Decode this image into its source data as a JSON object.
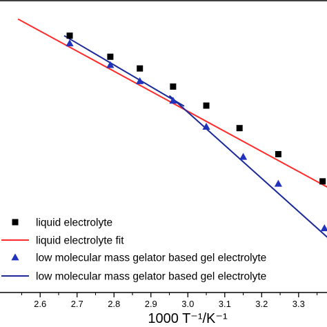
{
  "chart_data": {
    "type": "scatter",
    "title": "",
    "xlabel": "1000 T⁻¹/K⁻¹",
    "ylabel": "",
    "xlim": [
      2.48,
      3.39
    ],
    "ylim": [
      0,
      1
    ],
    "xticks": [
      2.6,
      2.7,
      2.8,
      2.9,
      3.0,
      3.1,
      3.2,
      3.3
    ],
    "xtick_labels": [
      "2.6",
      "2.7",
      "2.8",
      "2.9",
      "3.0",
      "3.1",
      "3.2",
      "3.3"
    ],
    "grid": false,
    "legend_position": "bottom-left",
    "series": [
      {
        "name": "liquid electrolyte",
        "kind": "points",
        "marker": "square",
        "color": "#000000",
        "x": [
          2.68,
          2.79,
          2.87,
          2.96,
          3.05,
          3.14,
          3.245,
          3.365
        ],
        "y": [
          0.878,
          0.806,
          0.766,
          0.704,
          0.639,
          0.562,
          0.473,
          0.38
        ]
      },
      {
        "name": "liquid electrolyte fit",
        "kind": "line",
        "color": "#ff2a2a",
        "x": [
          2.54,
          3.39
        ],
        "y": [
          0.935,
          0.352
        ]
      },
      {
        "name": "low molecular mass gelator based gel electrolyte",
        "kind": "points",
        "marker": "triangle",
        "color": "#2233bb",
        "x": [
          2.68,
          2.79,
          2.87,
          2.96,
          3.05,
          3.15,
          3.245,
          3.37
        ],
        "y": [
          0.852,
          0.778,
          0.723,
          0.656,
          0.567,
          0.464,
          0.372,
          0.22
        ]
      },
      {
        "name": "low molecular mass gelator based gel electrolyte",
        "kind": "line",
        "color": "#1a2a99",
        "x": [
          2.665,
          2.99
        ],
        "y": [
          0.878,
          0.637
        ]
      },
      {
        "name": "low molecular mass gelator based gel electrolyte",
        "kind": "line",
        "color": "#1a2a99",
        "x": [
          2.95,
          3.39
        ],
        "y": [
          0.673,
          0.175
        ]
      }
    ],
    "legend": [
      {
        "label": "liquid electrolyte",
        "symbol": "square",
        "color": "#000000"
      },
      {
        "label": "liquid electrolyte fit",
        "symbol": "line",
        "color": "#ff2a2a"
      },
      {
        "label": "low molecular mass gelator based gel electrolyte",
        "symbol": "triangle",
        "color": "#2233bb"
      },
      {
        "label": "low molecular mass gelator based gel electrolyte",
        "symbol": "line",
        "color": "#1a2a99"
      }
    ]
  }
}
